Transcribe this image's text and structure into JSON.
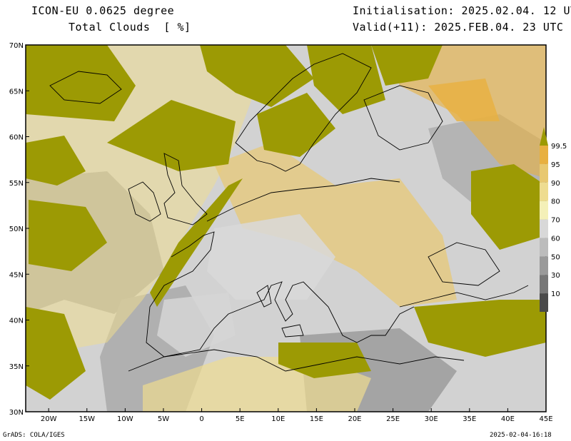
{
  "header": {
    "model": "ICON-EU 0.0625 degree",
    "field": "Total Clouds  [ %]",
    "initialisation": "Initialisation: 2025.02.04. 12 UTC",
    "valid": "Valid(+11): 2025.FEB.04. 23 UTC"
  },
  "axes": {
    "lat_ticks": [
      "70N",
      "65N",
      "60N",
      "55N",
      "50N",
      "45N",
      "40N",
      "35N",
      "30N"
    ],
    "lat_values": [
      70,
      65,
      60,
      55,
      50,
      45,
      40,
      35,
      30
    ],
    "lon_ticks": [
      "20W",
      "15W",
      "10W",
      "5W",
      "0",
      "5E",
      "10E",
      "15E",
      "20E",
      "25E",
      "30E",
      "35E",
      "40E",
      "45E"
    ],
    "lon_values": [
      -20,
      -15,
      -10,
      -5,
      0,
      5,
      10,
      15,
      20,
      25,
      30,
      35,
      40,
      45
    ],
    "lon_range": [
      -23,
      45
    ],
    "lat_range": [
      30,
      70
    ]
  },
  "colorbar": {
    "labels": [
      "99.5",
      "95",
      "90",
      "80",
      "70",
      "60",
      "50",
      "30",
      "10"
    ],
    "levels": [
      10,
      30,
      50,
      60,
      70,
      80,
      90,
      95,
      99.5
    ],
    "colors": [
      "#4a4a4a",
      "#777777",
      "#9a9a9a",
      "#bcbcbc",
      "#d8d8d8",
      "#f4f0b8",
      "#eedc90",
      "#e8c870",
      "#e8b040",
      "#9c9a04"
    ]
  },
  "colors": {
    "overcast": "#9c9a04",
    "cloud_high": "#e8b040",
    "cloud_mid": "#eedc90",
    "clear_land": "#d8d8d8",
    "clear_dark": "#8a8a8a",
    "coast": "#000000"
  },
  "footer": {
    "credit": "GrADS: COLA/IGES",
    "timestamp": "2025-02-04-16:18"
  }
}
